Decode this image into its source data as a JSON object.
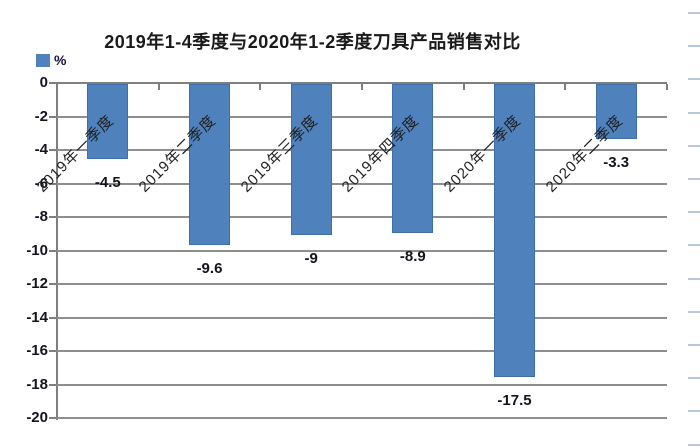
{
  "title": "2019年1-4季度与2020年1-2季度刀具产品销售对比",
  "legend": {
    "label": "%",
    "color": "#4F81BD",
    "position": "top-left"
  },
  "chart_data": {
    "type": "bar",
    "title": "2019年1-4季度与2020年1-2季度刀具产品销售对比",
    "unit": "%",
    "categories": [
      "2019年一季度",
      "2019年二季度",
      "2019年三季度",
      "2019年四季度",
      "2020年一季度",
      "2020年二季度"
    ],
    "values": [
      -4.5,
      -9.6,
      -9,
      -8.9,
      -17.5,
      -3.3
    ],
    "data_labels": [
      "-4.5",
      "-9.6",
      "-9",
      "-8.9",
      "-17.5",
      "-3.3"
    ],
    "ylim": [
      -20,
      0
    ],
    "ytick_step": 2,
    "ytick_labels": [
      "0",
      "-2",
      "-4",
      "-6",
      "-8",
      "-10",
      "-12",
      "-14",
      "-16",
      "-18",
      "-20"
    ],
    "grid": true,
    "category_label_rotation_deg": 45,
    "bar_color": "#4F81BD",
    "bar_border_color": "#3e6fa8",
    "gridline_color": "#8e8e8e",
    "axis_color": "#7f7f7f",
    "label_color": "#14141e"
  },
  "decor": {
    "right_edge_dash_color": "#b7c7de",
    "right_edge_dash_count": 14
  }
}
